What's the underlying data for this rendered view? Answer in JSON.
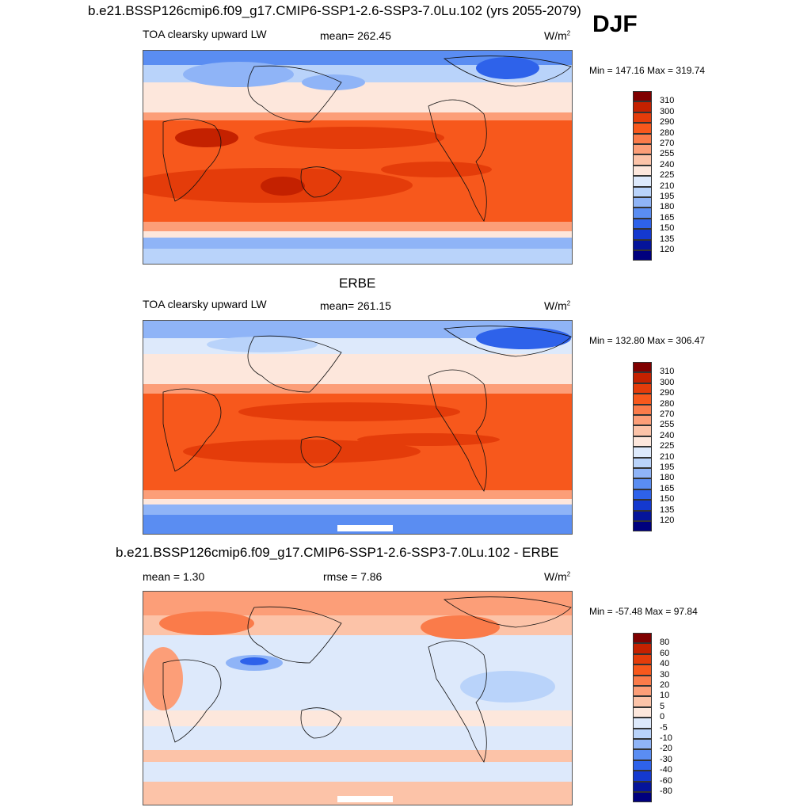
{
  "header": {
    "season": "DJF"
  },
  "panels": [
    {
      "title": "b.e21.BSSP126cmip6.f09_g17.CMIP6-SSP1-2.6-SSP3-7.0Lu.102 (yrs 2055-2079)",
      "left_label": "TOA clearsky upward LW",
      "center_label": "mean= 262.45",
      "units": "W/m",
      "units_sup": "2",
      "minmax": "Min = 147.16 Max = 319.74",
      "colorbar_labels": [
        "310",
        "300",
        "290",
        "280",
        "270",
        "255",
        "240",
        "225",
        "210",
        "195",
        "180",
        "165",
        "150",
        "135",
        "120"
      ],
      "colors": [
        "#800000",
        "#c42100",
        "#e43c0a",
        "#f7581c",
        "#fa7b4a",
        "#fc9e78",
        "#fcc3a8",
        "#fde7dc",
        "#dde9fb",
        "#b9d3fa",
        "#8fb4f7",
        "#5a8df2",
        "#2e62ea",
        "#1439cf",
        "#05149a",
        "#00007e"
      ]
    },
    {
      "title": "ERBE",
      "left_label": "TOA clearsky upward LW",
      "center_label": "mean= 261.15",
      "units": "W/m",
      "units_sup": "2",
      "minmax": "Min = 132.80 Max = 306.47",
      "colorbar_labels": [
        "310",
        "300",
        "290",
        "280",
        "270",
        "255",
        "240",
        "225",
        "210",
        "195",
        "180",
        "165",
        "150",
        "135",
        "120"
      ],
      "colors": [
        "#800000",
        "#c42100",
        "#e43c0a",
        "#f7581c",
        "#fa7b4a",
        "#fc9e78",
        "#fcc3a8",
        "#fde7dc",
        "#dde9fb",
        "#b9d3fa",
        "#8fb4f7",
        "#5a8df2",
        "#2e62ea",
        "#1439cf",
        "#05149a",
        "#00007e"
      ]
    },
    {
      "title": "b.e21.BSSP126cmip6.f09_g17.CMIP6-SSP1-2.6-SSP3-7.0Lu.102 - ERBE",
      "left_label": "mean =   1.30",
      "center_label": "rmse =   7.86",
      "units": "W/m",
      "units_sup": "2",
      "minmax": "Min = -57.48 Max =  97.84",
      "colorbar_labels": [
        "80",
        "60",
        "40",
        "30",
        "20",
        "10",
        "5",
        "0",
        "-5",
        "-10",
        "-20",
        "-30",
        "-40",
        "-60",
        "-80"
      ],
      "colors": [
        "#800000",
        "#c42100",
        "#e43c0a",
        "#f7581c",
        "#fa7b4a",
        "#fc9e78",
        "#fcc3a8",
        "#fde7dc",
        "#dde9fb",
        "#b9d3fa",
        "#8fb4f7",
        "#5a8df2",
        "#2e62ea",
        "#1439cf",
        "#05149a",
        "#00007e"
      ]
    }
  ]
}
